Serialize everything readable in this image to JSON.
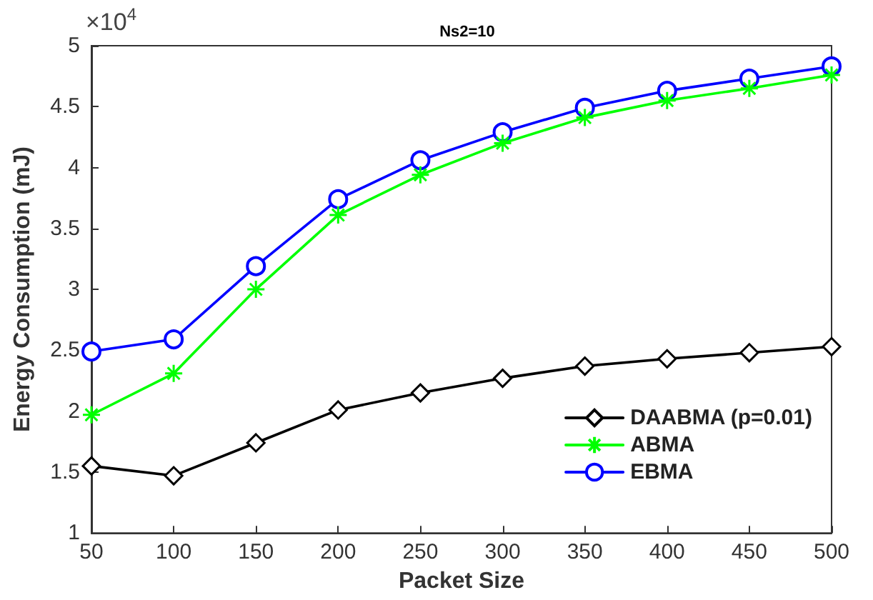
{
  "chart_data": {
    "type": "line",
    "title": "Ns2=10",
    "xlabel": "Packet Size",
    "ylabel": "Energy Consumption (mJ)",
    "annotations": [
      "×10$^{4}$"
    ],
    "x": [
      50,
      100,
      150,
      200,
      250,
      300,
      350,
      400,
      450,
      500
    ],
    "series": [
      {
        "name": "DAABMA (p=0.01)",
        "color": "#000000",
        "marker": "diamond",
        "values": [
          1.55,
          1.47,
          1.74,
          2.01,
          2.15,
          2.27,
          2.37,
          2.43,
          2.48,
          2.53
        ]
      },
      {
        "name": "ABMA",
        "color": "#00ff00",
        "marker": "cross",
        "values": [
          1.97,
          2.31,
          3.0,
          3.61,
          3.94,
          4.2,
          4.41,
          4.55,
          4.65,
          4.76
        ]
      },
      {
        "name": "EBMA",
        "color": "#0000ff",
        "marker": "circle",
        "values": [
          2.49,
          2.59,
          3.19,
          3.74,
          4.06,
          4.29,
          4.49,
          4.63,
          4.73,
          4.83
        ]
      }
    ],
    "xlim": [
      50,
      500
    ],
    "xticks": [
      50,
      100,
      150,
      200,
      250,
      300,
      350,
      400,
      450,
      500
    ],
    "ylim": [
      1,
      5
    ],
    "yticks": [
      1,
      1.5,
      2,
      2.5,
      3,
      3.5,
      4,
      4.5,
      5
    ],
    "grid": false,
    "legend": "bottom right",
    "line_style": "solid"
  }
}
